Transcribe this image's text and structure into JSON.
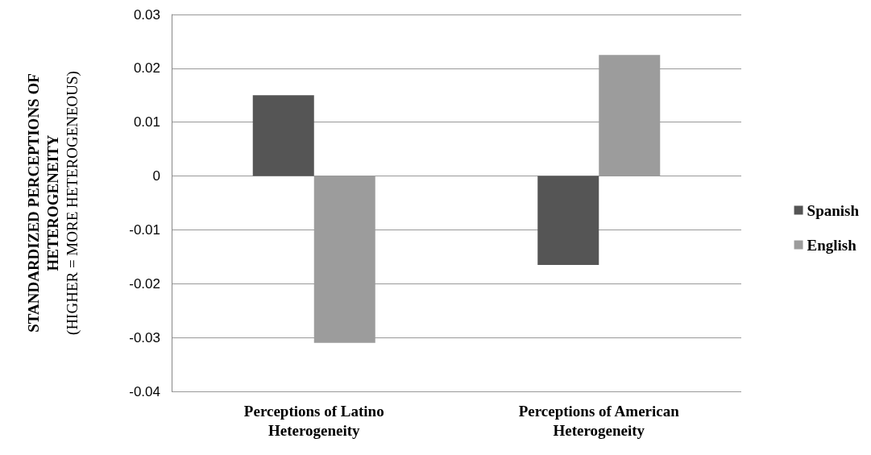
{
  "chart_data": {
    "type": "bar",
    "ylabel": "STANDARDIZED PERCEPTIONS OF\nHETEROGENEITY\n(HIGHER = MORE HETEROGENEOUS)",
    "categories": [
      "Perceptions of Latino\nHeterogeneity",
      "Perceptions of American\nHeterogeneity"
    ],
    "series": [
      {
        "name": "Spanish",
        "color": "#555555",
        "values": [
          0.015,
          -0.0165
        ]
      },
      {
        "name": "English",
        "color": "#9c9c9c",
        "values": [
          -0.031,
          0.0225
        ]
      }
    ],
    "ylim": [
      -0.04,
      0.03
    ],
    "yticks": [
      -0.04,
      -0.03,
      -0.02,
      -0.01,
      0,
      0.01,
      0.02,
      0.03
    ],
    "grid": "y",
    "legend": "right"
  }
}
